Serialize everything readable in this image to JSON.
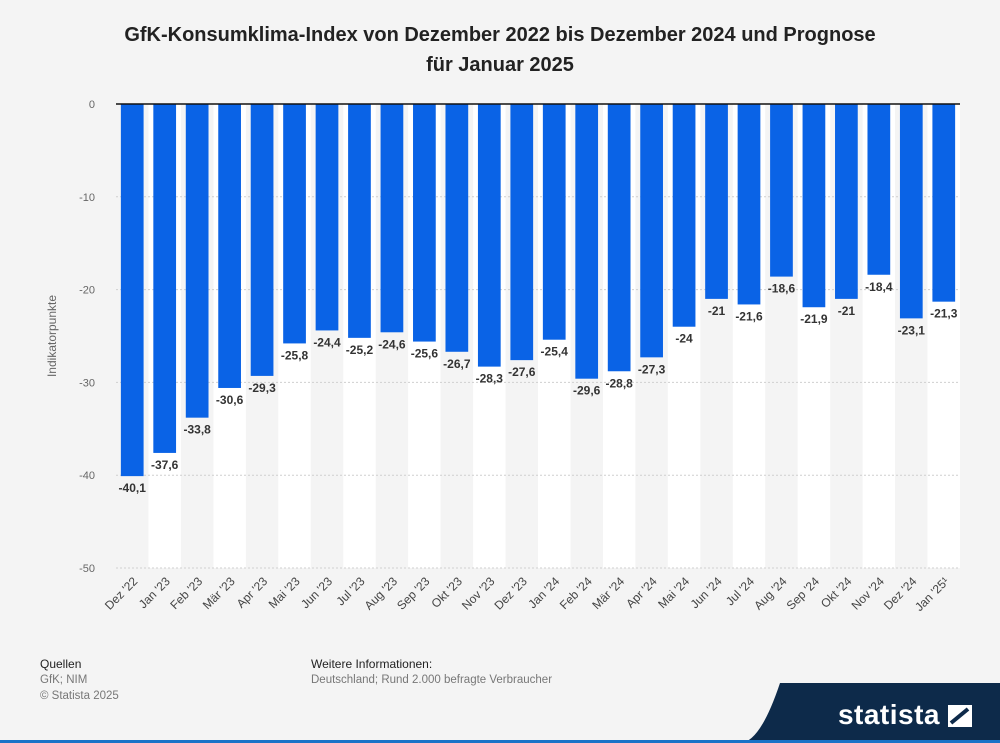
{
  "title_line1": "GfK-Konsumklima-Index von Dezember 2022 bis Dezember 2024 und Prognose",
  "title_line2": "für Januar 2025",
  "footer": {
    "sources_heading": "Quellen",
    "sources_line1": "GfK; NIM",
    "sources_line2": "© Statista 2025",
    "info_heading": "Weitere Informationen:",
    "info_text": "Deutschland; Rund 2.000 befragte Verbraucher"
  },
  "brand": "statista",
  "colors": {
    "bar": "#0a63e6",
    "stripe": "#ffffff",
    "background": "#f4f4f4",
    "brand_dark": "#0d2a4a"
  },
  "chart_data": {
    "type": "bar",
    "categories": [
      "Dez '22",
      "Jan '23",
      "Feb '23",
      "Mär '23",
      "Apr '23",
      "Mai '23",
      "Jun '23",
      "Jul '23",
      "Aug '23",
      "Sep '23",
      "Okt '23",
      "Nov '23",
      "Dez '23",
      "Jan '24",
      "Feb '24",
      "Mär '24",
      "Apr '24",
      "Mai '24",
      "Jun '24",
      "Jul '24",
      "Aug '24",
      "Sep '24",
      "Okt '24",
      "Nov '24",
      "Dez '24",
      "Jan '25¹"
    ],
    "values": [
      -40.1,
      -37.6,
      -33.8,
      -30.6,
      -29.3,
      -25.8,
      -24.4,
      -25.2,
      -24.6,
      -25.6,
      -26.7,
      -28.3,
      -27.6,
      -25.4,
      -29.6,
      -28.8,
      -27.3,
      -24,
      -21,
      -21.6,
      -18.6,
      -21.9,
      -21,
      -18.4,
      -23.1,
      -21.3
    ],
    "value_labels": [
      "-40,1",
      "-37,6",
      "-33,8",
      "-30,6",
      "-29,3",
      "-25,8",
      "-24,4",
      "-25,2",
      "-24,6",
      "-25,6",
      "-26,7",
      "-28,3",
      "-27,6",
      "-25,4",
      "-29,6",
      "-28,8",
      "-27,3",
      "-24",
      "-21",
      "-21,6",
      "-18,6",
      "-21,9",
      "-21",
      "-18,4",
      "-23,1",
      "-21,3"
    ],
    "ylabel": "Indikatorpunkte",
    "xlabel": "",
    "ylim": [
      -50,
      0
    ],
    "yticks": [
      0,
      -10,
      -20,
      -30,
      -40,
      -50
    ],
    "grid": true
  }
}
